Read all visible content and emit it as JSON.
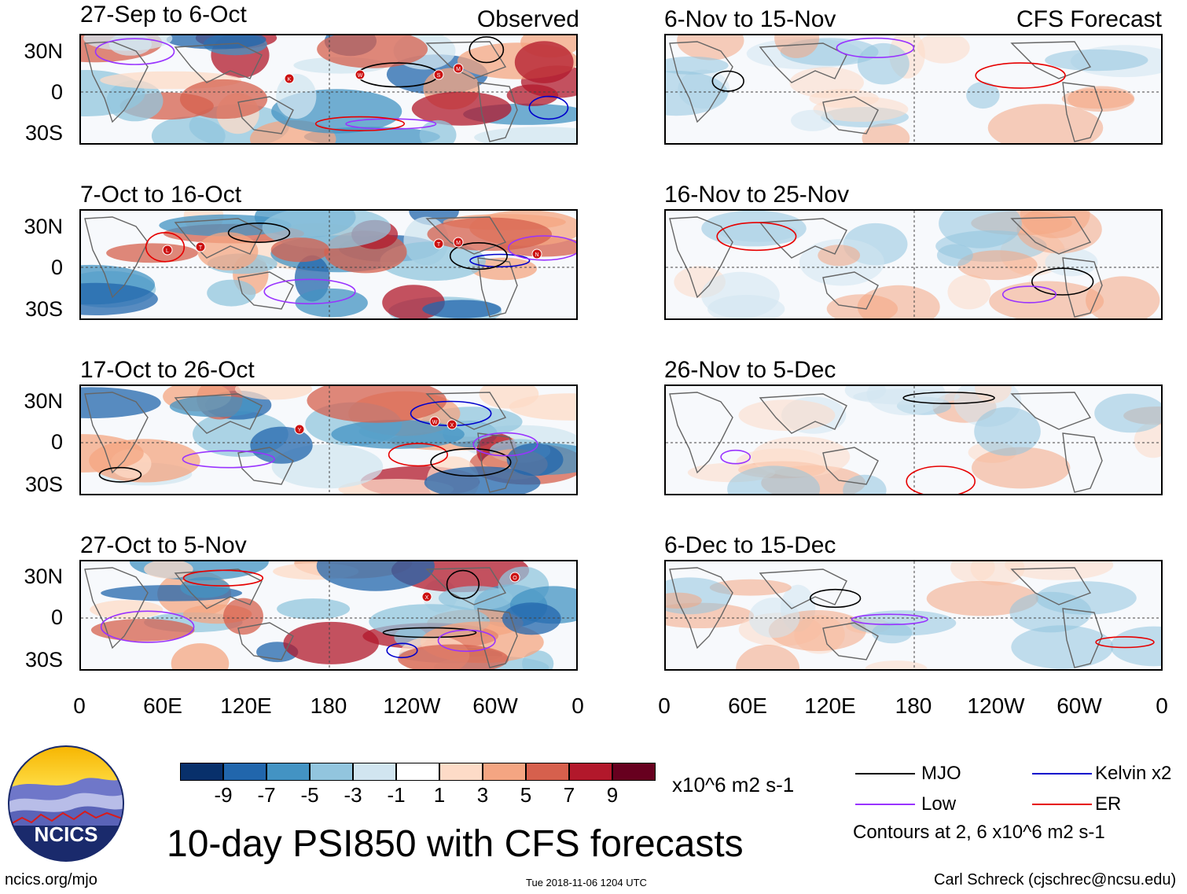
{
  "observed": {
    "tag": "Observed",
    "panels": [
      {
        "title": "27-Sep to 6-Oct",
        "storms": [
          "K",
          "W",
          "S",
          "M"
        ]
      },
      {
        "title": "7-Oct to 16-Oct",
        "storms": [
          "L",
          "T",
          "T",
          "M",
          "N"
        ]
      },
      {
        "title": "17-Oct to 26-Oct",
        "storms": [
          "Y",
          "W",
          "X"
        ]
      },
      {
        "title": "27-Oct to 5-Nov",
        "storms": [
          "X",
          "O"
        ]
      }
    ]
  },
  "forecast": {
    "tag": "CFS Forecast",
    "panels": [
      {
        "title": "6-Nov to 15-Nov"
      },
      {
        "title": "16-Nov to 25-Nov"
      },
      {
        "title": "26-Nov to 5-Dec"
      },
      {
        "title": "6-Dec to 15-Dec"
      }
    ]
  },
  "axes": {
    "lat_labels": [
      "30N",
      "0",
      "30S"
    ],
    "lon_labels": [
      "0",
      "60E",
      "120E",
      "180",
      "120W",
      "60W",
      "0"
    ]
  },
  "colorbar": {
    "colors": [
      "#08306b",
      "#2166ac",
      "#4393c3",
      "#92c5de",
      "#d1e5f0",
      "#ffffff",
      "#fddbc7",
      "#f4a582",
      "#d6604d",
      "#b2182b",
      "#67001f"
    ],
    "ticks": [
      "-9",
      "-7",
      "-5",
      "-3",
      "-1",
      "1",
      "3",
      "5",
      "7",
      "9"
    ],
    "units": "x10^6 m2 s-1"
  },
  "legend": {
    "items": [
      {
        "label": "MJO",
        "color": "#000000"
      },
      {
        "label": "Kelvin x2",
        "color": "#0000cc"
      },
      {
        "label": "Low",
        "color": "#9933ff"
      },
      {
        "label": "ER",
        "color": "#e60000"
      }
    ],
    "note": "Contours at 2, 6 x10^6 m2 s-1"
  },
  "title": "10-day PSI850 with CFS forecasts",
  "logo_text": "NCICS",
  "footer": {
    "left": "ncics.org/mjo",
    "center": "Tue 2018-11-06 1204 UTC",
    "right": "Carl Schreck (cjschrec@ncsu.edu)"
  }
}
